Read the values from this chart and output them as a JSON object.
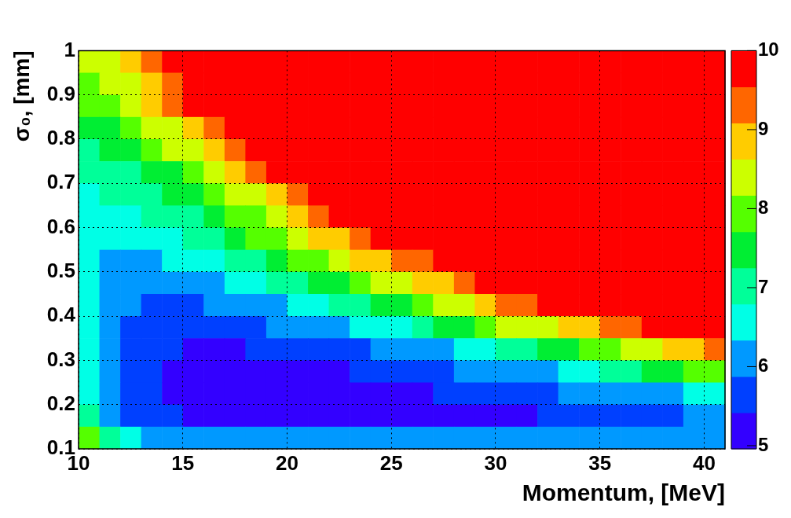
{
  "chart_data": {
    "type": "heatmap",
    "xlabel": "Momentum, [MeV]",
    "ylabel": "σ₀, [mm]",
    "cells": [
      [
        8.4,
        8.4,
        8.9,
        9.3,
        9.8,
        9.8,
        9.8,
        9.8,
        9.8,
        9.8,
        9.8,
        9.8,
        9.8,
        9.8,
        9.8,
        9.8,
        9.8,
        9.8,
        9.8,
        9.8,
        9.8,
        9.8,
        9.8,
        9.8,
        9.8,
        9.8,
        9.8,
        9.8,
        9.8,
        9.8,
        9.8
      ],
      [
        7.9,
        8.4,
        8.4,
        8.9,
        9.3,
        9.8,
        9.8,
        9.8,
        9.8,
        9.8,
        9.8,
        9.8,
        9.8,
        9.8,
        9.8,
        9.8,
        9.8,
        9.8,
        9.8,
        9.8,
        9.8,
        9.8,
        9.8,
        9.8,
        9.8,
        9.8,
        9.8,
        9.8,
        9.8,
        9.8,
        9.8
      ],
      [
        7.9,
        7.9,
        8.4,
        8.9,
        9.3,
        9.8,
        9.8,
        9.8,
        9.8,
        9.8,
        9.8,
        9.8,
        9.8,
        9.8,
        9.8,
        9.8,
        9.8,
        9.8,
        9.8,
        9.8,
        9.8,
        9.8,
        9.8,
        9.8,
        9.8,
        9.8,
        9.8,
        9.8,
        9.8,
        9.8,
        9.8
      ],
      [
        7.5,
        7.5,
        7.9,
        8.4,
        8.4,
        8.9,
        9.3,
        9.8,
        9.8,
        9.8,
        9.8,
        9.8,
        9.8,
        9.8,
        9.8,
        9.8,
        9.8,
        9.8,
        9.8,
        9.8,
        9.8,
        9.8,
        9.8,
        9.8,
        9.8,
        9.8,
        9.8,
        9.8,
        9.8,
        9.8,
        9.8
      ],
      [
        7.0,
        7.5,
        7.5,
        7.9,
        8.4,
        8.4,
        8.9,
        9.3,
        9.8,
        9.8,
        9.8,
        9.8,
        9.8,
        9.8,
        9.8,
        9.8,
        9.8,
        9.8,
        9.8,
        9.8,
        9.8,
        9.8,
        9.8,
        9.8,
        9.8,
        9.8,
        9.8,
        9.8,
        9.8,
        9.8,
        9.8
      ],
      [
        7.0,
        7.0,
        7.0,
        7.5,
        7.5,
        7.9,
        8.4,
        8.9,
        9.3,
        9.8,
        9.8,
        9.8,
        9.8,
        9.8,
        9.8,
        9.8,
        9.8,
        9.8,
        9.8,
        9.8,
        9.8,
        9.8,
        9.8,
        9.8,
        9.8,
        9.8,
        9.8,
        9.8,
        9.8,
        9.8,
        9.8
      ],
      [
        6.6,
        7.0,
        7.0,
        7.0,
        7.5,
        7.5,
        7.9,
        8.4,
        8.4,
        8.9,
        9.3,
        9.8,
        9.8,
        9.8,
        9.8,
        9.8,
        9.8,
        9.8,
        9.8,
        9.8,
        9.8,
        9.8,
        9.8,
        9.8,
        9.8,
        9.8,
        9.8,
        9.8,
        9.8,
        9.8,
        9.8
      ],
      [
        6.6,
        6.6,
        6.6,
        7.0,
        7.0,
        7.0,
        7.5,
        7.9,
        7.9,
        8.4,
        8.9,
        9.3,
        9.8,
        9.8,
        9.8,
        9.8,
        9.8,
        9.8,
        9.8,
        9.8,
        9.8,
        9.8,
        9.8,
        9.8,
        9.8,
        9.8,
        9.8,
        9.8,
        9.8,
        9.8,
        9.8
      ],
      [
        6.6,
        6.6,
        6.6,
        6.6,
        6.6,
        7.0,
        7.0,
        7.5,
        7.9,
        7.9,
        8.4,
        8.9,
        8.9,
        9.3,
        9.8,
        9.8,
        9.8,
        9.8,
        9.8,
        9.8,
        9.8,
        9.8,
        9.8,
        9.8,
        9.8,
        9.8,
        9.8,
        9.8,
        9.8,
        9.8,
        9.8
      ],
      [
        6.6,
        6.1,
        6.1,
        6.1,
        6.6,
        6.6,
        6.6,
        7.0,
        7.0,
        7.5,
        7.9,
        7.9,
        8.4,
        8.9,
        8.9,
        9.3,
        9.3,
        9.8,
        9.8,
        9.8,
        9.8,
        9.8,
        9.8,
        9.8,
        9.8,
        9.8,
        9.8,
        9.8,
        9.8,
        9.8,
        9.8
      ],
      [
        6.6,
        6.1,
        6.1,
        6.1,
        6.1,
        6.1,
        6.1,
        6.6,
        6.6,
        7.0,
        7.0,
        7.5,
        7.5,
        7.9,
        8.4,
        8.4,
        8.9,
        8.9,
        9.3,
        9.8,
        9.8,
        9.8,
        9.8,
        9.8,
        9.8,
        9.8,
        9.8,
        9.8,
        9.8,
        9.8,
        9.8
      ],
      [
        6.6,
        6.1,
        6.1,
        5.6,
        5.6,
        5.6,
        6.1,
        6.1,
        6.1,
        6.1,
        6.6,
        6.6,
        7.0,
        7.0,
        7.5,
        7.5,
        7.9,
        8.4,
        8.4,
        8.9,
        9.3,
        9.3,
        9.8,
        9.8,
        9.8,
        9.8,
        9.8,
        9.8,
        9.8,
        9.8,
        9.8
      ],
      [
        6.6,
        6.1,
        5.6,
        5.6,
        5.6,
        5.6,
        5.6,
        5.6,
        5.6,
        6.1,
        6.1,
        6.1,
        6.1,
        6.6,
        6.6,
        6.6,
        7.0,
        7.5,
        7.5,
        7.9,
        8.4,
        8.4,
        8.4,
        8.9,
        8.9,
        9.3,
        9.3,
        9.8,
        9.8,
        9.8,
        9.8
      ],
      [
        6.6,
        6.1,
        5.6,
        5.6,
        5.6,
        5.2,
        5.2,
        5.2,
        5.6,
        5.6,
        5.6,
        5.6,
        5.6,
        5.6,
        6.1,
        6.1,
        6.1,
        6.1,
        6.6,
        6.6,
        7.0,
        7.0,
        7.5,
        7.5,
        7.9,
        7.9,
        8.4,
        8.4,
        8.9,
        8.9,
        9.3
      ],
      [
        6.6,
        6.1,
        5.6,
        5.6,
        5.2,
        5.2,
        5.2,
        5.2,
        5.2,
        5.2,
        5.2,
        5.2,
        5.2,
        5.6,
        5.6,
        5.6,
        5.6,
        5.6,
        6.1,
        6.1,
        6.1,
        6.1,
        6.1,
        6.6,
        6.6,
        7.0,
        7.0,
        7.5,
        7.5,
        7.9,
        7.9
      ],
      [
        6.6,
        6.1,
        5.6,
        5.6,
        5.2,
        5.2,
        5.2,
        5.2,
        5.2,
        5.2,
        5.2,
        5.2,
        5.2,
        5.2,
        5.2,
        5.2,
        5.2,
        5.6,
        5.6,
        5.6,
        5.6,
        5.6,
        5.6,
        6.1,
        6.1,
        6.1,
        6.1,
        6.1,
        6.1,
        6.6,
        6.6
      ],
      [
        7.0,
        6.1,
        5.6,
        5.6,
        5.6,
        5.2,
        5.2,
        5.2,
        5.2,
        5.2,
        5.2,
        5.2,
        5.2,
        5.2,
        5.2,
        5.2,
        5.2,
        5.2,
        5.2,
        5.2,
        5.2,
        5.2,
        5.6,
        5.6,
        5.6,
        5.6,
        5.6,
        5.6,
        5.6,
        6.1,
        6.1
      ],
      [
        7.9,
        7.0,
        6.6,
        6.1,
        6.1,
        6.1,
        6.1,
        6.1,
        6.1,
        6.1,
        6.1,
        6.1,
        6.1,
        6.1,
        6.1,
        6.1,
        6.1,
        6.1,
        6.1,
        6.1,
        6.1,
        6.1,
        6.1,
        6.1,
        6.1,
        6.1,
        6.1,
        6.1,
        6.1,
        6.1,
        6.1
      ]
    ],
    "xlim": [
      10,
      41
    ],
    "ylim": [
      0.1,
      1
    ],
    "xticks": [
      10,
      15,
      20,
      25,
      30,
      35,
      40
    ],
    "yticks": [
      0.1,
      0.2,
      0.3,
      0.4,
      0.5,
      0.6,
      0.7,
      0.8,
      0.9,
      1
    ],
    "clim": [
      4.96,
      10
    ],
    "cticks": [
      5,
      6,
      7,
      8,
      9,
      10
    ],
    "grid": true
  }
}
